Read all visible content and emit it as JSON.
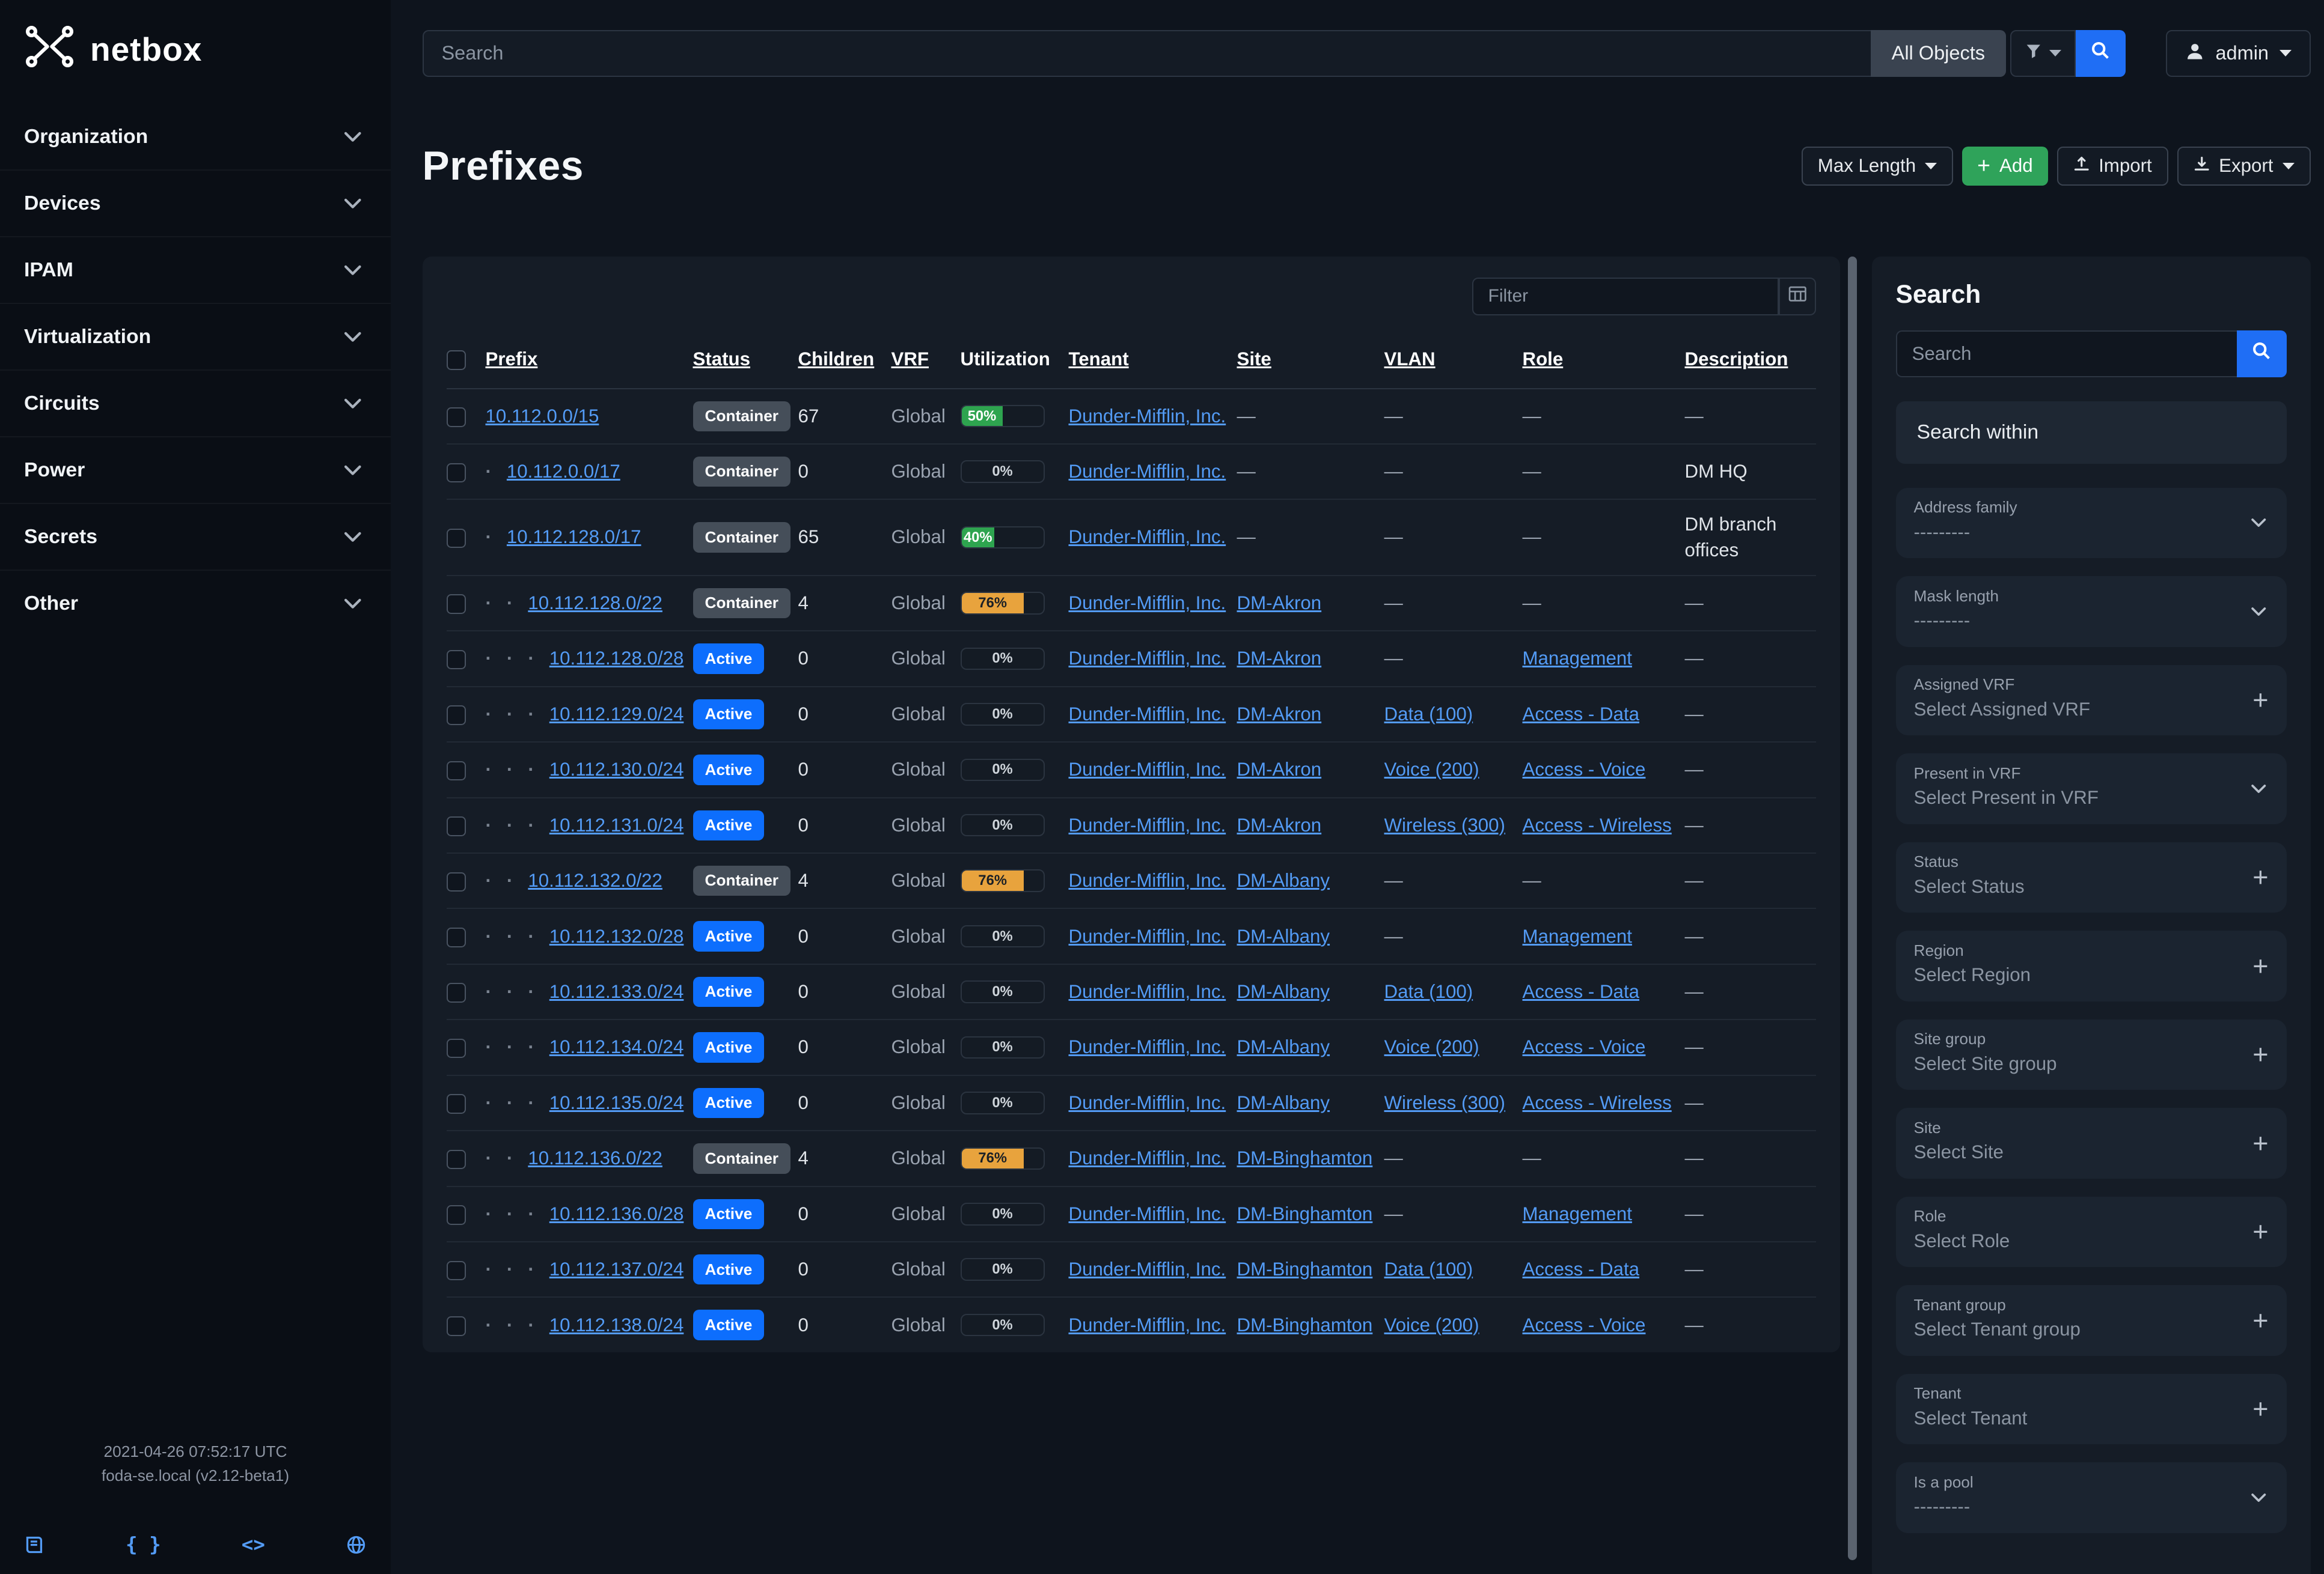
{
  "colors": {
    "accent_blue": "#1f6ef5",
    "link_blue": "#539bf5",
    "success_green": "#2ea44f",
    "warning_orange": "#e8a33d",
    "add_green": "#2fa35a",
    "active_badge": "#0d6efd"
  },
  "sidebar": {
    "brand": "netbox",
    "items": [
      {
        "label": "Organization"
      },
      {
        "label": "Devices"
      },
      {
        "label": "IPAM"
      },
      {
        "label": "Virtualization"
      },
      {
        "label": "Circuits"
      },
      {
        "label": "Power"
      },
      {
        "label": "Secrets"
      },
      {
        "label": "Other"
      }
    ],
    "footer": {
      "timestamp": "2021-04-26 07:52:17 UTC",
      "version": "foda-se.local (v2.12-beta1)",
      "icons": [
        "docs-book",
        "rest-api-braces",
        "code-brackets",
        "globe"
      ]
    }
  },
  "topbar": {
    "search_placeholder": "Search",
    "scope_label": "All Objects",
    "user_label": "admin"
  },
  "page": {
    "title": "Prefixes",
    "buttons": {
      "max_length": "Max Length",
      "add": "Add",
      "import": "Import",
      "export": "Export"
    }
  },
  "table": {
    "filter_placeholder": "Filter",
    "columns": [
      {
        "label": "Prefix",
        "sortable": true
      },
      {
        "label": "Status",
        "sortable": true
      },
      {
        "label": "Children",
        "sortable": true
      },
      {
        "label": "VRF",
        "sortable": true
      },
      {
        "label": "Utilization",
        "sortable": false
      },
      {
        "label": "Tenant",
        "sortable": true
      },
      {
        "label": "Site",
        "sortable": true
      },
      {
        "label": "VLAN",
        "sortable": true
      },
      {
        "label": "Role",
        "sortable": true
      },
      {
        "label": "Description",
        "sortable": true
      }
    ],
    "rows": [
      {
        "depth": 0,
        "prefix": "10.112.0.0/15",
        "status": "Container",
        "variant": "container",
        "children": "67",
        "vrf": "Global",
        "util_pct": 50,
        "util_variant": "success",
        "tenant": "Dunder-Mifflin, Inc.",
        "site": null,
        "vlan": null,
        "role": null,
        "description": null
      },
      {
        "depth": 1,
        "prefix": "10.112.0.0/17",
        "status": "Container",
        "variant": "container",
        "children": "0",
        "vrf": "Global",
        "util_pct": 0,
        "util_variant": "none",
        "tenant": "Dunder-Mifflin, Inc.",
        "site": null,
        "vlan": null,
        "role": null,
        "description": "DM HQ"
      },
      {
        "depth": 1,
        "prefix": "10.112.128.0/17",
        "status": "Container",
        "variant": "container",
        "children": "65",
        "vrf": "Global",
        "util_pct": 40,
        "util_variant": "success",
        "tenant": "Dunder-Mifflin, Inc.",
        "site": null,
        "vlan": null,
        "role": null,
        "description": "DM branch offices"
      },
      {
        "depth": 2,
        "prefix": "10.112.128.0/22",
        "status": "Container",
        "variant": "container",
        "children": "4",
        "vrf": "Global",
        "util_pct": 76,
        "util_variant": "warning",
        "tenant": "Dunder-Mifflin, Inc.",
        "site": "DM-Akron",
        "vlan": null,
        "role": null,
        "description": null
      },
      {
        "depth": 3,
        "prefix": "10.112.128.0/28",
        "status": "Active",
        "variant": "active",
        "children": "0",
        "vrf": "Global",
        "util_pct": 0,
        "util_variant": "none",
        "tenant": "Dunder-Mifflin, Inc.",
        "site": "DM-Akron",
        "vlan": null,
        "role": "Management",
        "description": null
      },
      {
        "depth": 3,
        "prefix": "10.112.129.0/24",
        "status": "Active",
        "variant": "active",
        "children": "0",
        "vrf": "Global",
        "util_pct": 0,
        "util_variant": "none",
        "tenant": "Dunder-Mifflin, Inc.",
        "site": "DM-Akron",
        "vlan": "Data (100)",
        "role": "Access - Data",
        "description": null
      },
      {
        "depth": 3,
        "prefix": "10.112.130.0/24",
        "status": "Active",
        "variant": "active",
        "children": "0",
        "vrf": "Global",
        "util_pct": 0,
        "util_variant": "none",
        "tenant": "Dunder-Mifflin, Inc.",
        "site": "DM-Akron",
        "vlan": "Voice (200)",
        "role": "Access - Voice",
        "description": null
      },
      {
        "depth": 3,
        "prefix": "10.112.131.0/24",
        "status": "Active",
        "variant": "active",
        "children": "0",
        "vrf": "Global",
        "util_pct": 0,
        "util_variant": "none",
        "tenant": "Dunder-Mifflin, Inc.",
        "site": "DM-Akron",
        "vlan": "Wireless (300)",
        "role": "Access - Wireless",
        "description": null
      },
      {
        "depth": 2,
        "prefix": "10.112.132.0/22",
        "status": "Container",
        "variant": "container",
        "children": "4",
        "vrf": "Global",
        "util_pct": 76,
        "util_variant": "warning",
        "tenant": "Dunder-Mifflin, Inc.",
        "site": "DM-Albany",
        "vlan": null,
        "role": null,
        "description": null
      },
      {
        "depth": 3,
        "prefix": "10.112.132.0/28",
        "status": "Active",
        "variant": "active",
        "children": "0",
        "vrf": "Global",
        "util_pct": 0,
        "util_variant": "none",
        "tenant": "Dunder-Mifflin, Inc.",
        "site": "DM-Albany",
        "vlan": null,
        "role": "Management",
        "description": null
      },
      {
        "depth": 3,
        "prefix": "10.112.133.0/24",
        "status": "Active",
        "variant": "active",
        "children": "0",
        "vrf": "Global",
        "util_pct": 0,
        "util_variant": "none",
        "tenant": "Dunder-Mifflin, Inc.",
        "site": "DM-Albany",
        "vlan": "Data (100)",
        "role": "Access - Data",
        "description": null
      },
      {
        "depth": 3,
        "prefix": "10.112.134.0/24",
        "status": "Active",
        "variant": "active",
        "children": "0",
        "vrf": "Global",
        "util_pct": 0,
        "util_variant": "none",
        "tenant": "Dunder-Mifflin, Inc.",
        "site": "DM-Albany",
        "vlan": "Voice (200)",
        "role": "Access - Voice",
        "description": null
      },
      {
        "depth": 3,
        "prefix": "10.112.135.0/24",
        "status": "Active",
        "variant": "active",
        "children": "0",
        "vrf": "Global",
        "util_pct": 0,
        "util_variant": "none",
        "tenant": "Dunder-Mifflin, Inc.",
        "site": "DM-Albany",
        "vlan": "Wireless (300)",
        "role": "Access - Wireless",
        "description": null
      },
      {
        "depth": 2,
        "prefix": "10.112.136.0/22",
        "status": "Container",
        "variant": "container",
        "children": "4",
        "vrf": "Global",
        "util_pct": 76,
        "util_variant": "warning",
        "tenant": "Dunder-Mifflin, Inc.",
        "site": "DM-Binghamton",
        "vlan": null,
        "role": null,
        "description": null
      },
      {
        "depth": 3,
        "prefix": "10.112.136.0/28",
        "status": "Active",
        "variant": "active",
        "children": "0",
        "vrf": "Global",
        "util_pct": 0,
        "util_variant": "none",
        "tenant": "Dunder-Mifflin, Inc.",
        "site": "DM-Binghamton",
        "vlan": null,
        "role": "Management",
        "description": null
      },
      {
        "depth": 3,
        "prefix": "10.112.137.0/24",
        "status": "Active",
        "variant": "active",
        "children": "0",
        "vrf": "Global",
        "util_pct": 0,
        "util_variant": "none",
        "tenant": "Dunder-Mifflin, Inc.",
        "site": "DM-Binghamton",
        "vlan": "Data (100)",
        "role": "Access - Data",
        "description": null
      },
      {
        "depth": 3,
        "prefix": "10.112.138.0/24",
        "status": "Active",
        "variant": "active",
        "children": "0",
        "vrf": "Global",
        "util_pct": 0,
        "util_variant": "none",
        "tenant": "Dunder-Mifflin, Inc.",
        "site": "DM-Binghamton",
        "vlan": "Voice (200)",
        "role": "Access - Voice",
        "description": null
      }
    ]
  },
  "filters_panel": {
    "title": "Search",
    "search_placeholder": "Search",
    "search_within": "Search within",
    "fields": [
      {
        "label": "Address family",
        "value": "---------",
        "control": "select"
      },
      {
        "label": "Mask length",
        "value": "---------",
        "control": "select"
      },
      {
        "label": "Assigned VRF",
        "value": "Select Assigned VRF",
        "control": "add"
      },
      {
        "label": "Present in VRF",
        "value": "Select Present in VRF",
        "control": "select"
      },
      {
        "label": "Status",
        "value": "Select Status",
        "control": "add"
      },
      {
        "label": "Region",
        "value": "Select Region",
        "control": "add"
      },
      {
        "label": "Site group",
        "value": "Select Site group",
        "control": "add"
      },
      {
        "label": "Site",
        "value": "Select Site",
        "control": "add"
      },
      {
        "label": "Role",
        "value": "Select Role",
        "control": "add"
      },
      {
        "label": "Tenant group",
        "value": "Select Tenant group",
        "control": "add"
      },
      {
        "label": "Tenant",
        "value": "Select Tenant",
        "control": "add"
      },
      {
        "label": "Is a pool",
        "value": "---------",
        "control": "select"
      }
    ]
  }
}
